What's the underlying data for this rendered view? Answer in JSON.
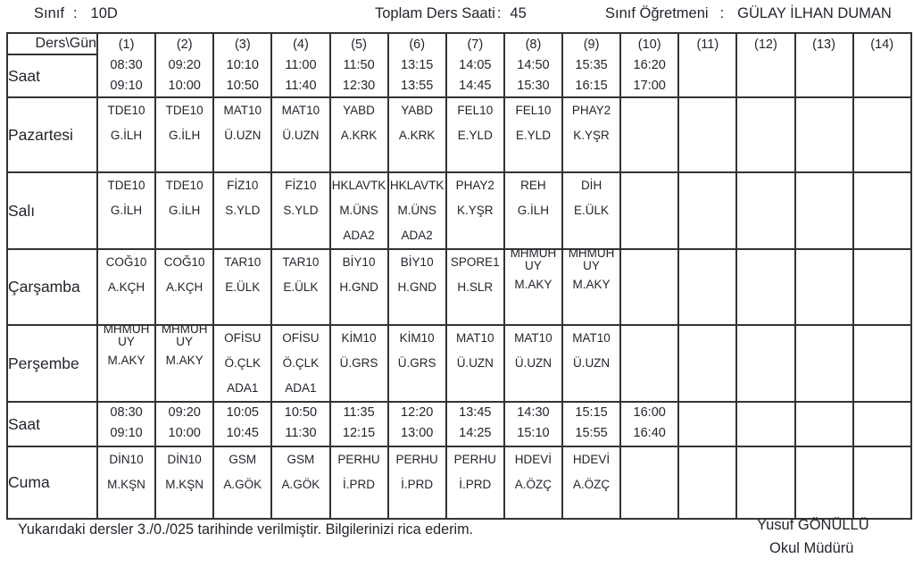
{
  "header": {
    "colon": ":",
    "class_label": "Sınıf",
    "class_value": "10D",
    "total_label": "Toplam Ders Saati",
    "total_value": "45",
    "teacher_label": "Sınıf Öğretmeni",
    "teacher_value": "GÜLAY İLHAN DUMAN"
  },
  "table": {
    "corner_label": "Ders\\Gün",
    "saat_label": "Saat",
    "periods": [
      {
        "num": "(1)",
        "start": "08:30",
        "end": "09:10"
      },
      {
        "num": "(2)",
        "start": "09:20",
        "end": "10:00"
      },
      {
        "num": "(3)",
        "start": "10:10",
        "end": "10:50"
      },
      {
        "num": "(4)",
        "start": "11:00",
        "end": "11:40"
      },
      {
        "num": "(5)",
        "start": "11:50",
        "end": "12:30"
      },
      {
        "num": "(6)",
        "start": "13:15",
        "end": "13:55"
      },
      {
        "num": "(7)",
        "start": "14:05",
        "end": "14:45"
      },
      {
        "num": "(8)",
        "start": "14:50",
        "end": "15:30"
      },
      {
        "num": "(9)",
        "start": "15:35",
        "end": "16:15"
      },
      {
        "num": "(10)",
        "start": "16:20",
        "end": "17:00"
      },
      {
        "num": "(11)"
      },
      {
        "num": "(12)"
      },
      {
        "num": "(13)"
      },
      {
        "num": "(14)"
      }
    ],
    "rows": [
      {
        "kind": "day",
        "label": "Pazartesi",
        "cells": [
          {
            "code": "TDE10",
            "teacher": "G.İLH"
          },
          {
            "code": "TDE10",
            "teacher": "G.İLH"
          },
          {
            "code": "MAT10",
            "teacher": "Ü.UZN"
          },
          {
            "code": "MAT10",
            "teacher": "Ü.UZN"
          },
          {
            "code": "YABD",
            "teacher": "A.KRK"
          },
          {
            "code": "YABD",
            "teacher": "A.KRK"
          },
          {
            "code": "FEL10",
            "teacher": "E.YLD"
          },
          {
            "code": "FEL10",
            "teacher": "E.YLD"
          },
          {
            "code": "PHAY2",
            "teacher": "K.YŞR"
          },
          null,
          null,
          null,
          null,
          null
        ]
      },
      {
        "kind": "day",
        "label": "Salı",
        "cells": [
          {
            "code": "TDE10",
            "teacher": "G.İLH"
          },
          {
            "code": "TDE10",
            "teacher": "G.İLH"
          },
          {
            "code": "FİZ10",
            "teacher": "S.YLD"
          },
          {
            "code": "FİZ10",
            "teacher": "S.YLD"
          },
          {
            "code": "HKLAVTK",
            "teacher": "M.ÜNS",
            "room": "ADA2"
          },
          {
            "code": "HKLAVTK",
            "teacher": "M.ÜNS",
            "room": "ADA2"
          },
          {
            "code": "PHAY2",
            "teacher": "K.YŞR"
          },
          {
            "code": "REH",
            "teacher": "G.İLH"
          },
          {
            "code": "DİH",
            "teacher": "E.ÜLK"
          },
          null,
          null,
          null,
          null,
          null
        ]
      },
      {
        "kind": "day",
        "label": "Çarşamba",
        "cells": [
          {
            "code": "COĞ10",
            "teacher": "A.KÇH"
          },
          {
            "code": "COĞ10",
            "teacher": "A.KÇH"
          },
          {
            "code": "TAR10",
            "teacher": "E.ÜLK"
          },
          {
            "code": "TAR10",
            "teacher": "E.ÜLK"
          },
          {
            "code": "BİY10",
            "teacher": "H.GND"
          },
          {
            "code": "BİY10",
            "teacher": "H.GND"
          },
          {
            "code": "SPORE1",
            "teacher": "H.SLR"
          },
          {
            "code": "MHMUH UY",
            "teacher": "M.AKY"
          },
          {
            "code": "MHMUH UY",
            "teacher": "M.AKY"
          },
          null,
          null,
          null,
          null,
          null
        ]
      },
      {
        "kind": "day",
        "label": "Perşembe",
        "cells": [
          {
            "code": "MHMUH UY",
            "teacher": "M.AKY"
          },
          {
            "code": "MHMUH UY",
            "teacher": "M.AKY"
          },
          {
            "code": "OFİSU",
            "teacher": "Ö.ÇLK",
            "room": "ADA1"
          },
          {
            "code": "OFİSU",
            "teacher": "Ö.ÇLK",
            "room": "ADA1"
          },
          {
            "code": "KİM10",
            "teacher": "Ü.GRS"
          },
          {
            "code": "KİM10",
            "teacher": "Ü.GRS"
          },
          {
            "code": "MAT10",
            "teacher": "Ü.UZN"
          },
          {
            "code": "MAT10",
            "teacher": "Ü.UZN"
          },
          {
            "code": "MAT10",
            "teacher": "Ü.UZN"
          },
          null,
          null,
          null,
          null,
          null
        ]
      },
      {
        "kind": "time",
        "label": "Saat",
        "cells": [
          {
            "start": "08:30",
            "end": "09:10"
          },
          {
            "start": "09:20",
            "end": "10:00"
          },
          {
            "start": "10:05",
            "end": "10:45"
          },
          {
            "start": "10:50",
            "end": "11:30"
          },
          {
            "start": "11:35",
            "end": "12:15"
          },
          {
            "start": "12:20",
            "end": "13:00"
          },
          {
            "start": "13:45",
            "end": "14:25"
          },
          {
            "start": "14:30",
            "end": "15:10"
          },
          {
            "start": "15:15",
            "end": "15:55"
          },
          {
            "start": "16:00",
            "end": "16:40"
          },
          null,
          null,
          null,
          null
        ]
      },
      {
        "kind": "day",
        "label": "Cuma",
        "cells": [
          {
            "code": "DİN10",
            "teacher": "M.KŞN"
          },
          {
            "code": "DİN10",
            "teacher": "M.KŞN"
          },
          {
            "code": "GSM",
            "teacher": "A.GÖK"
          },
          {
            "code": "GSM",
            "teacher": "A.GÖK"
          },
          {
            "code": "PERHU",
            "teacher": "İ.PRD"
          },
          {
            "code": "PERHU",
            "teacher": "İ.PRD"
          },
          {
            "code": "PERHU",
            "teacher": "İ.PRD"
          },
          {
            "code": "HDEVİ",
            "teacher": "A.ÖZÇ"
          },
          {
            "code": "HDEVİ",
            "teacher": "A.ÖZÇ"
          },
          null,
          null,
          null,
          null,
          null
        ]
      }
    ]
  },
  "footer": {
    "note": "Yukarıdaki dersler 3./0./025  tarihinde verilmiştir. Bilgilerinizi rica ederim.",
    "signature_name": "Yusuf GÖNÜLLÜ",
    "signature_title": "Okul Müdürü"
  }
}
